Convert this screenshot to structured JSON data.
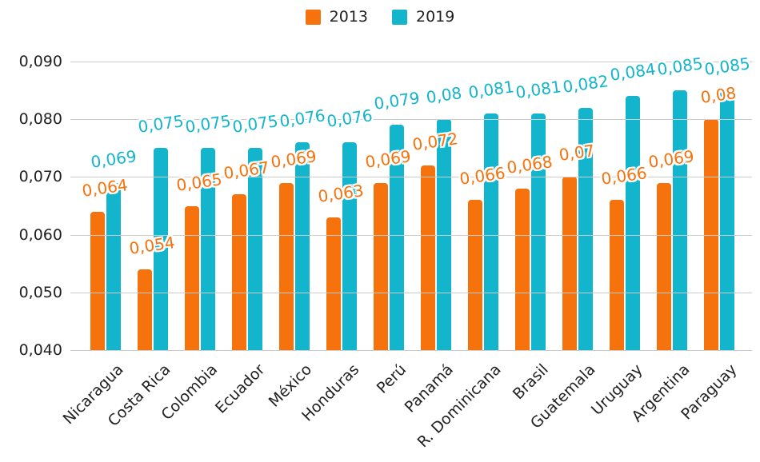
{
  "legend": {
    "items": [
      {
        "label": "2013",
        "color": "#F6720D"
      },
      {
        "label": "2019",
        "color": "#12B5CB"
      }
    ]
  },
  "chart_data": {
    "type": "bar",
    "title": "",
    "xlabel": "",
    "ylabel": "",
    "categories": [
      "Nicaragua",
      "Costa Rica",
      "Colombia",
      "Ecuador",
      "México",
      "Honduras",
      "Perú",
      "Panamá",
      "R. Dominicana",
      "Brasil",
      "Guatemala",
      "Uruguay",
      "Argentina",
      "Paraguay"
    ],
    "series": [
      {
        "name": "2013",
        "color": "#F6720D",
        "values": [
          0.064,
          0.054,
          0.065,
          0.067,
          0.069,
          0.063,
          0.069,
          0.072,
          0.066,
          0.068,
          0.07,
          0.066,
          0.069,
          0.08
        ],
        "labels": [
          "0,064",
          "0,054",
          "0,065",
          "0,067",
          "0,069",
          "0,063",
          "0,069",
          "0,072",
          "0,066",
          "0,068",
          "0,07",
          "0,066",
          "0,069",
          "0,08"
        ]
      },
      {
        "name": "2019",
        "color": "#12B5CB",
        "values": [
          0.069,
          0.075,
          0.075,
          0.075,
          0.076,
          0.076,
          0.079,
          0.08,
          0.081,
          0.081,
          0.082,
          0.084,
          0.085,
          0.085
        ],
        "labels": [
          "0,069",
          "0,075",
          "0,075",
          "0,075",
          "0,076",
          "0,076",
          "0,079",
          "0,08",
          "0,081",
          "0,081",
          "0,082",
          "0,084",
          "0,085",
          "0,085"
        ]
      }
    ],
    "y_ticks": [
      "0,090",
      "0,080",
      "0,070",
      "0,060",
      "0,050",
      "0,040"
    ],
    "ylim": [
      0.04,
      0.09
    ],
    "grid": "horizontal",
    "legend_position": "top",
    "value_label_format": "comma-decimal"
  }
}
